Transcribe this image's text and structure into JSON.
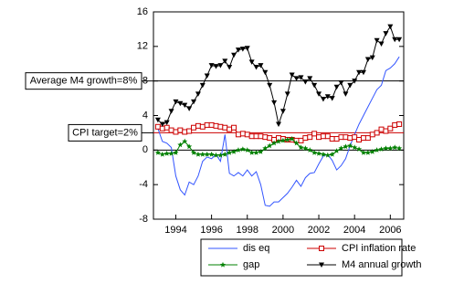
{
  "chart_data": {
    "type": "line",
    "x": [
      1993.0,
      1993.25,
      1993.5,
      1993.75,
      1994.0,
      1994.25,
      1994.5,
      1994.75,
      1995.0,
      1995.25,
      1995.5,
      1995.75,
      1996.0,
      1996.25,
      1996.5,
      1996.75,
      1997.0,
      1997.25,
      1997.5,
      1997.75,
      1998.0,
      1998.25,
      1998.5,
      1998.75,
      1999.0,
      1999.25,
      1999.5,
      1999.75,
      2000.0,
      2000.25,
      2000.5,
      2000.75,
      2001.0,
      2001.25,
      2001.5,
      2001.75,
      2002.0,
      2002.25,
      2002.5,
      2002.75,
      2003.0,
      2003.25,
      2003.5,
      2003.75,
      2004.0,
      2004.25,
      2004.5,
      2004.75,
      2005.0,
      2005.25,
      2005.5,
      2005.75,
      2006.0,
      2006.25,
      2006.5
    ],
    "xlim": [
      1992.75,
      2006.75
    ],
    "xticks": [
      1994,
      1996,
      1998,
      2000,
      2002,
      2004,
      2006
    ],
    "ylim": [
      -8,
      16
    ],
    "yticks": [
      -8,
      -4,
      0,
      4,
      8,
      12,
      16
    ],
    "legend": "bottom",
    "series": [
      {
        "name": "dis eq",
        "color": "#3355ff",
        "marker": "none",
        "values": [
          2.5,
          1.0,
          0.8,
          0.3,
          -3,
          -4.6,
          -5.2,
          -3.7,
          -4,
          -3,
          -1.3,
          -0.8,
          -1,
          -0.5,
          -1.3,
          1.8,
          -2.7,
          -3,
          -2.6,
          -3,
          -2.3,
          -3,
          -2.5,
          -4,
          -6.4,
          -6.5,
          -6,
          -6,
          -5.5,
          -5,
          -4.3,
          -3.5,
          -4.2,
          -3.2,
          -2.7,
          -2.6,
          -1.6,
          -0.7,
          -0.5,
          -1.2,
          -2.3,
          -1.8,
          -1,
          0.5,
          1.8,
          3,
          4,
          5,
          6,
          7,
          7.5,
          9.2,
          9.5,
          10,
          10.8
        ]
      },
      {
        "name": "CPI inflation rate",
        "color": "#cc0000",
        "marker": "square",
        "values": [
          2.7,
          2.5,
          2.6,
          2.3,
          2.1,
          2.3,
          2.1,
          2.2,
          2.6,
          2.8,
          2.7,
          2.9,
          2.9,
          2.8,
          2.7,
          2.6,
          2.4,
          2.6,
          1.8,
          1.9,
          1.8,
          1.6,
          1.6,
          1.6,
          1.5,
          1.4,
          1.2,
          1.4,
          1.3,
          1.2,
          1.2,
          1.1,
          1.1,
          1.4,
          1.5,
          1.9,
          1.5,
          1.6,
          1.6,
          1.3,
          1.3,
          1.5,
          1.5,
          1.4,
          1.5,
          1.2,
          1.4,
          1.4,
          1.8,
          2.0,
          2.4,
          2.2,
          2.5,
          2.9,
          3.0
        ]
      },
      {
        "name": "gap",
        "color": "#008000",
        "marker": "star",
        "values": [
          -0.3,
          -0.5,
          -0.4,
          -0.4,
          -0.3,
          0.6,
          1.0,
          0.4,
          -0.3,
          -0.5,
          -0.5,
          -0.5,
          -0.5,
          -0.6,
          -0.6,
          -0.5,
          -0.3,
          -0.2,
          0,
          0.1,
          0,
          -0.3,
          -0.3,
          -0.2,
          0.2,
          0.5,
          0.8,
          1.0,
          1.1,
          1.2,
          1.3,
          0.8,
          0.3,
          0.2,
          0,
          -0.3,
          -0.4,
          -0.5,
          -0.6,
          -0.5,
          -0.1,
          0.2,
          0.4,
          0.5,
          0.3,
          0.1,
          -0.3,
          -0.3,
          -0.2,
          0,
          0.1,
          0.2,
          0.2,
          0.3,
          0.2
        ]
      },
      {
        "name": "M4 annual growth",
        "color": "#000000",
        "marker": "triangle-down",
        "values": [
          3.5,
          3.0,
          3.2,
          4.5,
          5.6,
          5.4,
          5.2,
          4.8,
          5.6,
          6.5,
          7.5,
          8.6,
          9.8,
          9.7,
          9.8,
          10.3,
          9.6,
          11.0,
          11.6,
          11.7,
          11.8,
          10.2,
          9.6,
          9.8,
          9.0,
          7.5,
          5.5,
          3.0,
          4.5,
          6.5,
          8.7,
          8.3,
          8.4,
          7.9,
          8.3,
          7.5,
          6.5,
          5.9,
          6.2,
          6.0,
          7.3,
          7.8,
          6.5,
          7.5,
          8.0,
          9.0,
          9.0,
          10.5,
          10.7,
          12.7,
          12.3,
          13.5,
          14.3,
          12.8,
          12.8
        ]
      }
    ],
    "reference_lines": [
      {
        "value": 8,
        "color": "#000000",
        "label": "Average M4 growth=8%"
      },
      {
        "value": 2,
        "color": "#cc0000",
        "label": "CPI target=2%"
      },
      {
        "value": 0,
        "color": "#000000"
      }
    ]
  }
}
